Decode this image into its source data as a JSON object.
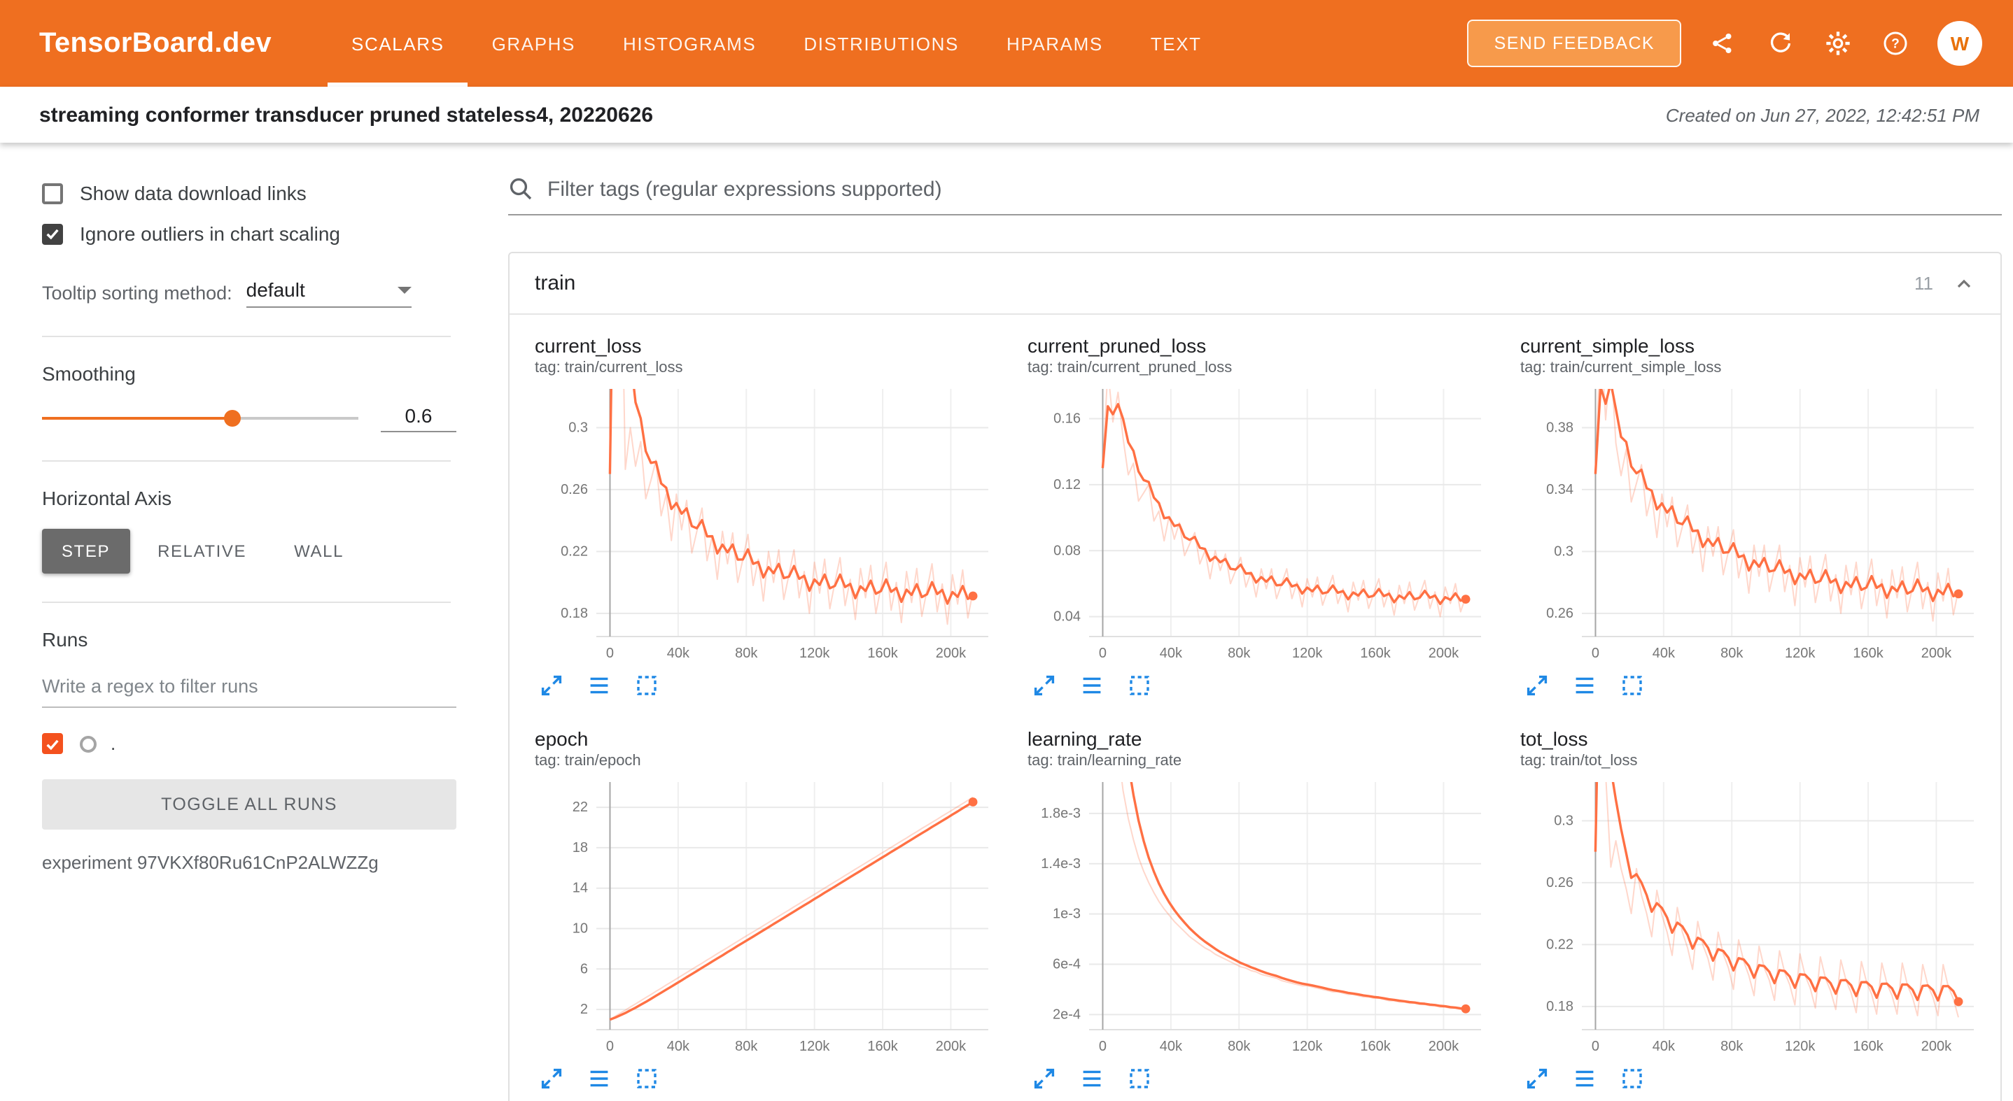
{
  "colors": {
    "header_bg": "#ef6f20",
    "feedback_bg": "#f79a4b",
    "accent": "#ef6f20",
    "run_color": "#ff7043",
    "run_checkbox": "#f4511e",
    "dark_checkbox": "#424242",
    "icon_blue": "#1e88e5"
  },
  "header": {
    "brand": "TensorBoard.dev",
    "tabs": [
      {
        "label": "SCALARS",
        "active": true
      },
      {
        "label": "GRAPHS",
        "active": false
      },
      {
        "label": "HISTOGRAMS",
        "active": false
      },
      {
        "label": "DISTRIBUTIONS",
        "active": false
      },
      {
        "label": "HPARAMS",
        "active": false
      },
      {
        "label": "TEXT",
        "active": false
      }
    ],
    "feedback_label": "SEND FEEDBACK",
    "icons": [
      "share-icon",
      "refresh-icon",
      "settings-icon",
      "help-icon"
    ],
    "avatar_letter": "W"
  },
  "subheader": {
    "title": "streaming conformer transducer pruned stateless4, 20220626",
    "created": "Created on Jun 27, 2022, 12:42:51 PM"
  },
  "sidebar": {
    "show_download_label": "Show data download links",
    "ignore_outliers_label": "Ignore outliers in chart scaling",
    "ignore_outliers_checked": true,
    "show_download_checked": false,
    "tooltip_sorting_label": "Tooltip sorting method:",
    "tooltip_sorting_value": "default",
    "smoothing_label": "Smoothing",
    "smoothing_value": "0.6",
    "horizontal_axis_label": "Horizontal Axis",
    "axis_buttons": [
      "STEP",
      "RELATIVE",
      "WALL"
    ],
    "axis_active": "STEP",
    "runs_label": "Runs",
    "runs_filter_placeholder": "Write a regex to filter runs",
    "run_name": ".",
    "run_checked": true,
    "toggle_all_label": "TOGGLE ALL RUNS",
    "experiment_label": "experiment 97VKXf80Ru61CnP2ALWZZg"
  },
  "main": {
    "filter_placeholder": "Filter tags (regular expressions supported)",
    "group": {
      "title": "train",
      "count": "11"
    },
    "chart_toolbar_icons": [
      "open-in-full-icon",
      "data-table-icon",
      "fit-domain-icon"
    ]
  },
  "smoothing": 0.6,
  "chart_data": [
    {
      "type": "line",
      "title": "current_loss",
      "tag": "tag: train/current_loss",
      "x_start": 0,
      "x_step": 3000,
      "x_domain": [
        -8000,
        222000
      ],
      "x_ticks": [
        0,
        40000,
        80000,
        120000,
        160000,
        200000
      ],
      "x_tick_labels": [
        "0",
        "40k",
        "80k",
        "120k",
        "160k",
        "200k"
      ],
      "y_domain": [
        0.165,
        0.325
      ],
      "y_ticks": [
        0.18,
        0.22,
        0.26,
        0.3
      ],
      "y_tick_labels": [
        "0.18",
        "0.22",
        "0.26",
        "0.3"
      ],
      "end_dot": true,
      "values": [
        0.27,
        0.62,
        0.46,
        0.273,
        0.3,
        0.275,
        0.291,
        0.254,
        0.266,
        0.279,
        0.243,
        0.257,
        0.227,
        0.257,
        0.234,
        0.253,
        0.219,
        0.233,
        0.248,
        0.214,
        0.23,
        0.202,
        0.233,
        0.212,
        0.232,
        0.2,
        0.215,
        0.231,
        0.198,
        0.215,
        0.188,
        0.22,
        0.2,
        0.221,
        0.189,
        0.205,
        0.221,
        0.19,
        0.207,
        0.18,
        0.213,
        0.193,
        0.215,
        0.183,
        0.2,
        0.216,
        0.185,
        0.202,
        0.176,
        0.209,
        0.19,
        0.211,
        0.18,
        0.197,
        0.213,
        0.182,
        0.2,
        0.174,
        0.207,
        0.187,
        0.209,
        0.178,
        0.195,
        0.212,
        0.181,
        0.199,
        0.173,
        0.205,
        0.186,
        0.208,
        0.177,
        0.194
      ]
    },
    {
      "type": "line",
      "title": "current_pruned_loss",
      "tag": "tag: train/current_pruned_loss",
      "x_start": 0,
      "x_step": 3000,
      "x_domain": [
        -8000,
        222000
      ],
      "x_ticks": [
        0,
        40000,
        80000,
        120000,
        160000,
        200000
      ],
      "x_tick_labels": [
        "0",
        "40k",
        "80k",
        "120k",
        "160k",
        "200k"
      ],
      "y_domain": [
        0.028,
        0.178
      ],
      "y_ticks": [
        0.04,
        0.08,
        0.12,
        0.16
      ],
      "y_tick_labels": [
        "0.04",
        "0.08",
        "0.12",
        "0.16"
      ],
      "end_dot": true,
      "values": [
        0.13,
        0.19,
        0.158,
        0.176,
        0.148,
        0.126,
        0.133,
        0.11,
        0.115,
        0.12,
        0.098,
        0.104,
        0.086,
        0.101,
        0.087,
        0.097,
        0.077,
        0.084,
        0.091,
        0.072,
        0.08,
        0.063,
        0.08,
        0.068,
        0.078,
        0.06,
        0.068,
        0.076,
        0.058,
        0.067,
        0.052,
        0.069,
        0.057,
        0.069,
        0.051,
        0.06,
        0.069,
        0.051,
        0.061,
        0.046,
        0.063,
        0.052,
        0.064,
        0.047,
        0.056,
        0.065,
        0.048,
        0.057,
        0.043,
        0.061,
        0.05,
        0.062,
        0.045,
        0.054,
        0.063,
        0.046,
        0.056,
        0.041,
        0.059,
        0.048,
        0.061,
        0.044,
        0.053,
        0.062,
        0.045,
        0.055,
        0.04,
        0.058,
        0.048,
        0.06,
        0.043,
        0.052
      ]
    },
    {
      "type": "line",
      "title": "current_simple_loss",
      "tag": "tag: train/current_simple_loss",
      "x_start": 0,
      "x_step": 3000,
      "x_domain": [
        -8000,
        222000
      ],
      "x_ticks": [
        0,
        40000,
        80000,
        120000,
        160000,
        200000
      ],
      "x_tick_labels": [
        "0",
        "40k",
        "80k",
        "120k",
        "160k",
        "200k"
      ],
      "y_domain": [
        0.245,
        0.405
      ],
      "y_ticks": [
        0.26,
        0.3,
        0.34,
        0.38
      ],
      "y_tick_labels": [
        "0.26",
        "0.3",
        "0.34",
        "0.38"
      ],
      "end_dot": true,
      "values": [
        0.35,
        0.44,
        0.385,
        0.425,
        0.37,
        0.349,
        0.366,
        0.332,
        0.344,
        0.356,
        0.323,
        0.337,
        0.309,
        0.337,
        0.316,
        0.335,
        0.303,
        0.316,
        0.33,
        0.299,
        0.314,
        0.287,
        0.316,
        0.297,
        0.316,
        0.285,
        0.3,
        0.314,
        0.283,
        0.299,
        0.273,
        0.304,
        0.284,
        0.304,
        0.274,
        0.289,
        0.304,
        0.274,
        0.291,
        0.265,
        0.296,
        0.277,
        0.297,
        0.267,
        0.283,
        0.298,
        0.268,
        0.285,
        0.26,
        0.291,
        0.272,
        0.293,
        0.263,
        0.279,
        0.295,
        0.265,
        0.282,
        0.257,
        0.288,
        0.27,
        0.29,
        0.261,
        0.277,
        0.293,
        0.263,
        0.28,
        0.255,
        0.286,
        0.268,
        0.289,
        0.259,
        0.275
      ]
    },
    {
      "type": "line",
      "title": "epoch",
      "tag": "tag: train/epoch",
      "x_start": 0,
      "x_step": 3000,
      "x_domain": [
        -8000,
        222000
      ],
      "x_ticks": [
        0,
        40000,
        80000,
        120000,
        160000,
        200000
      ],
      "x_tick_labels": [
        "0",
        "40k",
        "80k",
        "120k",
        "160k",
        "200k"
      ],
      "y_domain": [
        0,
        24.5
      ],
      "y_ticks": [
        2,
        6,
        10,
        14,
        18,
        22
      ],
      "y_tick_labels": [
        "2",
        "6",
        "10",
        "14",
        "18",
        "22"
      ],
      "end_dot": true,
      "values": [
        1.0,
        1.31,
        1.62,
        1.93,
        2.24,
        2.55,
        2.86,
        3.17,
        3.48,
        3.79,
        4.1,
        4.41,
        4.72,
        5.03,
        5.34,
        5.65,
        5.96,
        6.27,
        6.58,
        6.89,
        7.2,
        7.51,
        7.82,
        8.13,
        8.44,
        8.75,
        9.06,
        9.37,
        9.67,
        9.98,
        10.29,
        10.6,
        10.91,
        11.22,
        11.53,
        11.84,
        12.15,
        12.46,
        12.77,
        13.08,
        13.39,
        13.7,
        14.01,
        14.32,
        14.63,
        14.94,
        15.25,
        15.56,
        15.87,
        16.18,
        16.49,
        16.8,
        17.11,
        17.42,
        17.73,
        18.04,
        18.35,
        18.66,
        18.97,
        19.28,
        19.59,
        19.9,
        20.21,
        20.52,
        20.82,
        21.13,
        21.44,
        21.75,
        22.06,
        22.37,
        22.68,
        23.0
      ]
    },
    {
      "type": "line",
      "title": "learning_rate",
      "tag": "tag: train/learning_rate",
      "x_start": 0,
      "x_step": 3000,
      "x_domain": [
        -8000,
        222000
      ],
      "x_ticks": [
        0,
        40000,
        80000,
        120000,
        160000,
        200000
      ],
      "x_tick_labels": [
        "0",
        "40k",
        "80k",
        "120k",
        "160k",
        "200k"
      ],
      "y_domain": [
        8e-05,
        0.00205
      ],
      "y_ticks": [
        0.0002,
        0.0006,
        0.001,
        0.0014,
        0.0018
      ],
      "y_tick_labels": [
        "2e-4",
        "6e-4",
        "1e-3",
        "1.4e-3",
        "1.8e-3"
      ],
      "end_dot": true,
      "values": [
        0.005,
        0.0036,
        0.0028,
        0.0023,
        0.00198,
        0.00176,
        0.00159,
        0.00145,
        0.00134,
        0.00125,
        0.00117,
        0.0011,
        0.00104,
        0.00099,
        0.00094,
        0.0009,
        0.00086,
        0.00082,
        0.00079,
        0.00076,
        0.00073,
        0.00071,
        0.00068,
        0.00066,
        0.00064,
        0.00062,
        0.0006,
        0.00058,
        0.00057,
        0.00055,
        0.00054,
        0.00052,
        0.00051,
        0.0005,
        0.00049,
        0.00047,
        0.00046,
        0.00045,
        0.00044,
        0.00043,
        0.00043,
        0.00042,
        0.00041,
        0.0004,
        0.00039,
        0.00038,
        0.00038,
        0.00037,
        0.00036,
        0.00036,
        0.00035,
        0.00034,
        0.00034,
        0.00033,
        0.00033,
        0.00032,
        0.00031,
        0.00031,
        0.0003,
        0.0003,
        0.00029,
        0.00029,
        0.00028,
        0.00028,
        0.00027,
        0.00027,
        0.00026,
        0.00026,
        0.00025,
        0.00025,
        0.00024,
        0.00024
      ]
    },
    {
      "type": "line",
      "title": "tot_loss",
      "tag": "tag: train/tot_loss",
      "x_start": 0,
      "x_step": 3000,
      "x_domain": [
        -8000,
        222000
      ],
      "x_ticks": [
        0,
        40000,
        80000,
        120000,
        160000,
        200000
      ],
      "x_tick_labels": [
        "0",
        "40k",
        "80k",
        "120k",
        "160k",
        "200k"
      ],
      "y_domain": [
        0.165,
        0.325
      ],
      "y_ticks": [
        0.18,
        0.22,
        0.26,
        0.3
      ],
      "y_tick_labels": [
        "0.18",
        "0.22",
        "0.26",
        "0.3"
      ],
      "end_dot": true,
      "values": [
        0.28,
        0.55,
        0.33,
        0.27,
        0.287,
        0.269,
        0.256,
        0.24,
        0.269,
        0.252,
        0.24,
        0.225,
        0.255,
        0.239,
        0.228,
        0.213,
        0.244,
        0.228,
        0.218,
        0.204,
        0.235,
        0.22,
        0.211,
        0.197,
        0.228,
        0.214,
        0.205,
        0.191,
        0.223,
        0.209,
        0.2,
        0.187,
        0.219,
        0.205,
        0.197,
        0.184,
        0.216,
        0.202,
        0.194,
        0.181,
        0.214,
        0.2,
        0.192,
        0.179,
        0.212,
        0.198,
        0.19,
        0.178,
        0.21,
        0.197,
        0.189,
        0.176,
        0.209,
        0.196,
        0.188,
        0.175,
        0.208,
        0.195,
        0.187,
        0.175,
        0.208,
        0.194,
        0.186,
        0.174,
        0.207,
        0.194,
        0.186,
        0.174,
        0.207,
        0.193,
        0.185,
        0.173
      ]
    }
  ]
}
